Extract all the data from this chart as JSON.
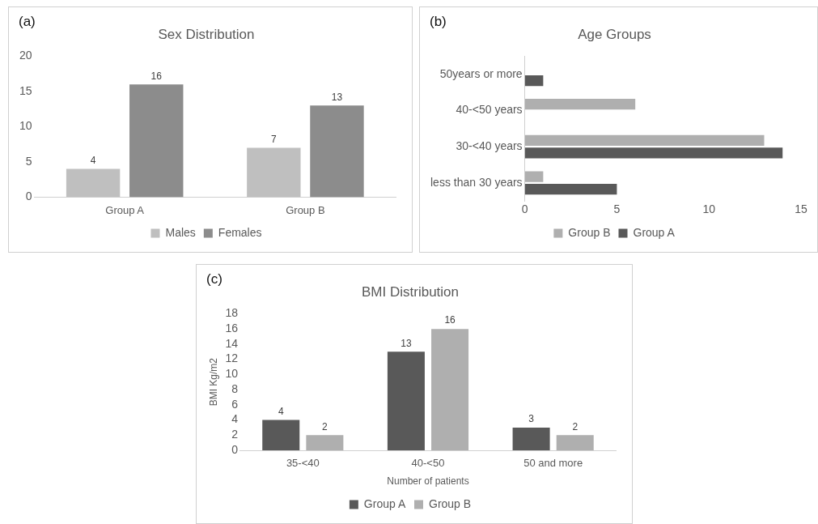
{
  "chart_data": [
    {
      "type": "bar",
      "title": "Sex Distribution",
      "annotations": [
        "(a)"
      ],
      "categories": [
        "Group A",
        "Group B"
      ],
      "series": [
        {
          "name": "Males",
          "color": "#bfbfbf",
          "values": [
            4,
            7
          ]
        },
        {
          "name": "Females",
          "color": "#8c8c8c",
          "values": [
            16,
            13
          ]
        }
      ],
      "ylim": [
        0,
        20
      ],
      "yticks": [
        0,
        5,
        10,
        15,
        20
      ],
      "grid": false,
      "legend": "bottom",
      "data_labels": true
    },
    {
      "type": "bar",
      "orientation": "horizontal",
      "title": "Age Groups",
      "annotations": [
        "(b)"
      ],
      "categories": [
        "50years or more",
        "40-<50 years",
        "30-<40 years",
        "less than 30 years"
      ],
      "series": [
        {
          "name": "Group B",
          "color": "#afafaf",
          "values": [
            0,
            6,
            13,
            1
          ]
        },
        {
          "name": "Group A",
          "color": "#595959",
          "values": [
            1,
            0,
            14,
            5
          ]
        }
      ],
      "xlim": [
        0,
        15
      ],
      "xticks": [
        0,
        5,
        10,
        15
      ],
      "grid": false,
      "legend": "bottom"
    },
    {
      "type": "bar",
      "title": "BMI Distribution",
      "annotations": [
        "(c)"
      ],
      "xlabel": "Number of patients",
      "ylabel": "BMI Kg/m2",
      "categories": [
        "35-<40",
        "40-<50",
        "50 and more"
      ],
      "series": [
        {
          "name": "Group A",
          "color": "#595959",
          "values": [
            4,
            13,
            3
          ]
        },
        {
          "name": "Group B",
          "color": "#afafaf",
          "values": [
            2,
            16,
            2
          ]
        }
      ],
      "ylim": [
        0,
        18
      ],
      "yticks": [
        0,
        2,
        4,
        6,
        8,
        10,
        12,
        14,
        16,
        18
      ],
      "grid": false,
      "legend": "bottom",
      "data_labels": true
    }
  ]
}
